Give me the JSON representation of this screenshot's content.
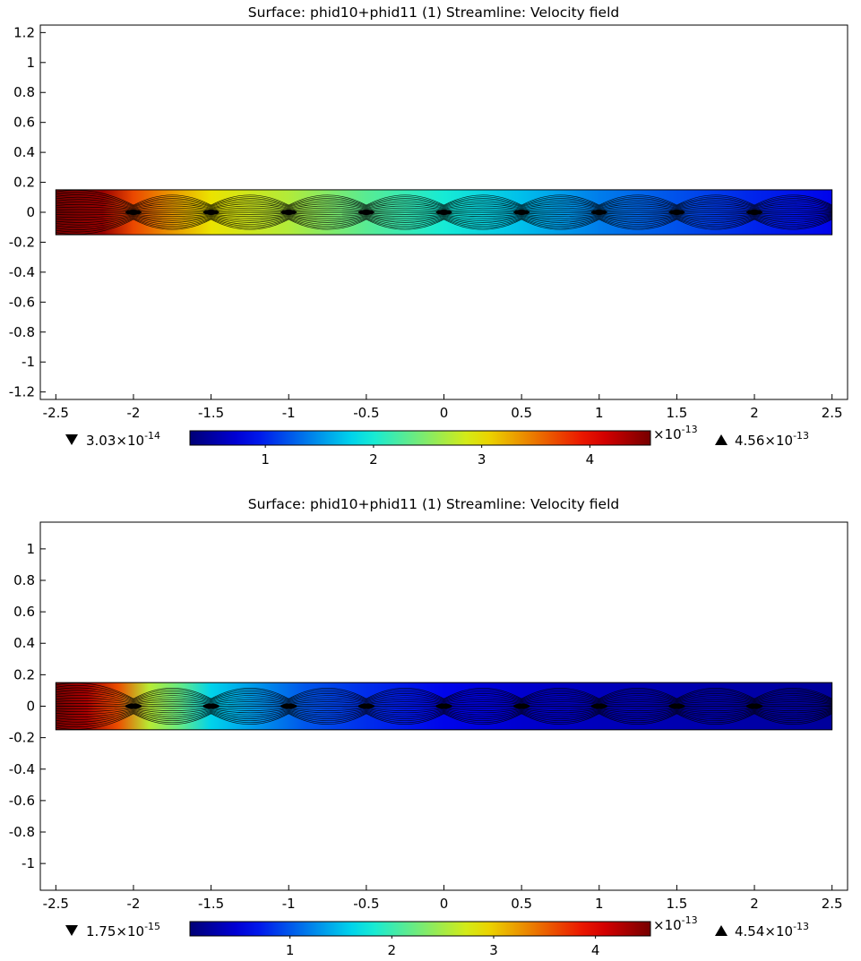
{
  "panels": [
    {
      "title": "Surface: phid10+phid11 (1)  Streamline: Velocity field",
      "chart_data": {
        "type": "heatmap",
        "title": "Surface: phid10+phid11 (1)  Streamline: Velocity field",
        "xlabel": "",
        "ylabel": "",
        "xlim": [
          -2.6,
          2.6
        ],
        "ylim": [
          -1.25,
          1.25
        ],
        "x_ticks": [
          -2.5,
          -2,
          -1.5,
          -1,
          -0.5,
          0,
          0.5,
          1,
          1.5,
          2,
          2.5
        ],
        "x_tick_labels": [
          "-2.5",
          "-2",
          "-1.5",
          "-1",
          "-0.5",
          "0",
          "0.5",
          "1",
          "1.5",
          "2",
          "2.5"
        ],
        "y_ticks": [
          1.2,
          1,
          0.8,
          0.6,
          0.4,
          0.2,
          0,
          -0.2,
          -0.4,
          -0.6,
          -0.8,
          -1,
          -1.2
        ],
        "y_tick_labels": [
          "1.2",
          "1",
          "0.8",
          "0.6",
          "0.4",
          "0.2",
          "0",
          "-0.2",
          "-0.4",
          "-0.6",
          "-0.8",
          "-1",
          "-1.2"
        ],
        "domain_x": [
          -2.5,
          2.5
        ],
        "domain_y": [
          -0.15,
          0.15
        ],
        "colormap": "jet",
        "surface_profile": {
          "x": [
            -2.5,
            -2.2,
            -2.0,
            -1.8,
            -1.5,
            -1.0,
            -0.5,
            0,
            0.5,
            1.0,
            1.5,
            2.0,
            2.5
          ],
          "value": [
            4.56,
            4.4,
            3.7,
            3.4,
            3.0,
            2.7,
            2.3,
            2.0,
            1.7,
            1.4,
            1.2,
            1.0,
            0.85
          ]
        },
        "stagnation_points_x": [
          -2,
          -1.5,
          -1,
          -0.5,
          0,
          0.5,
          1,
          1.5,
          2
        ],
        "colorbar": {
          "ticks": [
            1,
            2,
            3,
            4
          ],
          "tick_labels": [
            "1",
            "2",
            "3",
            "4"
          ],
          "scale": "×10^-13",
          "min_label": "3.03×10^-14",
          "max_label": "4.56×10^-13",
          "min": 0.303,
          "max": 4.56
        }
      }
    },
    {
      "title": "Surface: phid10+phid11 (1)  Streamline: Velocity field",
      "chart_data": {
        "type": "heatmap",
        "title": "Surface: phid10+phid11 (1)  Streamline: Velocity field",
        "xlabel": "",
        "ylabel": "",
        "xlim": [
          -2.6,
          2.6
        ],
        "ylim": [
          -1.17,
          1.17
        ],
        "x_ticks": [
          -2.5,
          -2,
          -1.5,
          -1,
          -0.5,
          0,
          0.5,
          1,
          1.5,
          2,
          2.5
        ],
        "x_tick_labels": [
          "-2.5",
          "-2",
          "-1.5",
          "-1",
          "-0.5",
          "0",
          "0.5",
          "1",
          "1.5",
          "2",
          "2.5"
        ],
        "y_ticks": [
          1,
          0.8,
          0.6,
          0.4,
          0.2,
          0,
          -0.2,
          -0.4,
          -0.6,
          -0.8,
          -1
        ],
        "y_tick_labels": [
          "1",
          "0.8",
          "0.6",
          "0.4",
          "0.2",
          "0",
          "-0.2",
          "-0.4",
          "-0.6",
          "-0.8",
          "-1"
        ],
        "domain_x": [
          -2.5,
          2.5
        ],
        "domain_y": [
          -0.15,
          0.15
        ],
        "colormap": "jet",
        "surface_profile": {
          "x": [
            -2.5,
            -2.3,
            -2.1,
            -1.9,
            -1.7,
            -1.5,
            -1.2,
            -0.9,
            -0.5,
            0,
            0.5,
            1.0,
            1.5,
            2.0,
            2.5
          ],
          "value": [
            4.54,
            4.3,
            3.6,
            2.6,
            2.2,
            1.6,
            1.3,
            1.0,
            0.8,
            0.6,
            0.45,
            0.35,
            0.3,
            0.25,
            0.2
          ]
        },
        "stagnation_points_x": [
          -2,
          -1.5,
          -1,
          -0.5,
          0,
          0.5,
          1,
          1.5,
          2
        ],
        "colorbar": {
          "ticks": [
            1,
            2,
            3,
            4
          ],
          "tick_labels": [
            "1",
            "2",
            "3",
            "4"
          ],
          "scale": "×10^-13",
          "min_label": "1.75×10^-15",
          "max_label": "4.54×10^-13",
          "min": 0.0175,
          "max": 4.54
        }
      }
    }
  ]
}
